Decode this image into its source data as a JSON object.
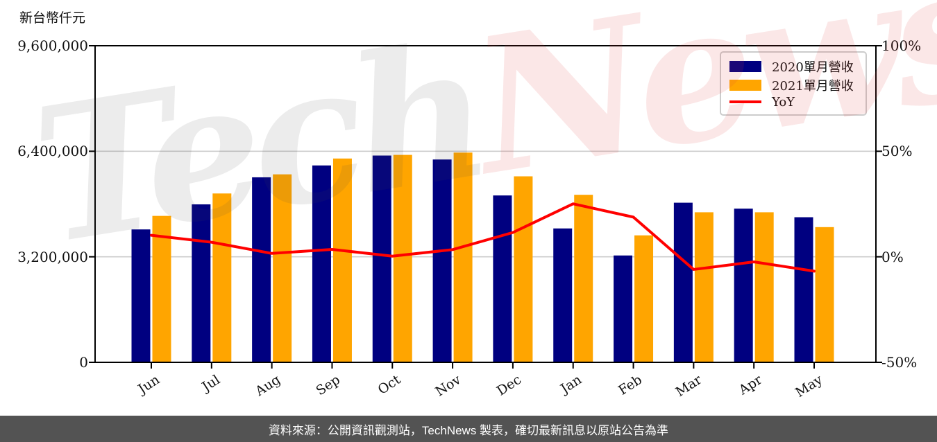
{
  "chart_data": {
    "type": "bar",
    "categories": [
      "Jun",
      "Jul",
      "Aug",
      "Sep",
      "Oct",
      "Nov",
      "Dec",
      "Jan",
      "Feb",
      "Mar",
      "Apr",
      "May"
    ],
    "series": [
      {
        "name": "2020單月營收",
        "kind": "bar",
        "color": "#000080",
        "axis": "left",
        "values": [
          4030000,
          4790000,
          5610000,
          5970000,
          6270000,
          6150000,
          5060000,
          4060000,
          3240000,
          4840000,
          4660000,
          4400000
        ]
      },
      {
        "name": "2021單月營收",
        "kind": "bar",
        "color": "#FFA500",
        "axis": "left",
        "values": [
          4440000,
          5120000,
          5700000,
          6180000,
          6290000,
          6360000,
          5640000,
          5080000,
          3850000,
          4550000,
          4550000,
          4100000
        ]
      },
      {
        "name": "YoY",
        "kind": "line",
        "color": "#FF0000",
        "axis": "right",
        "values": [
          10.2,
          6.9,
          1.6,
          3.5,
          0.3,
          3.4,
          11.5,
          25.1,
          18.8,
          -6.0,
          -2.4,
          -6.8
        ]
      }
    ],
    "left_axis": {
      "unit_label": "新台幣仟元",
      "min": 0,
      "max": 9600000,
      "ticks": [
        {
          "value": 9600000,
          "label": "9,600,000"
        },
        {
          "value": 6400000,
          "label": "6,400,000"
        },
        {
          "value": 3200000,
          "label": "3,200,000"
        },
        {
          "value": 0,
          "label": "0"
        }
      ]
    },
    "right_axis": {
      "min": -50,
      "max": 100,
      "ticks": [
        {
          "value": 100,
          "label": "100%"
        },
        {
          "value": 50,
          "label": "50%"
        },
        {
          "value": 0,
          "label": "0%"
        },
        {
          "value": -50,
          "label": "-50%"
        }
      ]
    },
    "grid": "horizontal gridlines at interior left-axis ticks",
    "legend_position": "top-right"
  },
  "legend": {
    "items": [
      "2020單月營收",
      "2021單月營收",
      "YoY"
    ]
  },
  "watermark": {
    "part1": "Tech",
    "part2": "News"
  },
  "caption": {
    "text": "資料來源：公開資訊觀測站，TechNews 製表，確切最新訊息以原站公告為準"
  },
  "colors": {
    "bar_2020": "#000080",
    "bar_2021": "#FFA500",
    "yoy_line": "#FF0000",
    "caption_bg": "#535353",
    "gridline": "#cccccc",
    "axis": "#000000"
  }
}
